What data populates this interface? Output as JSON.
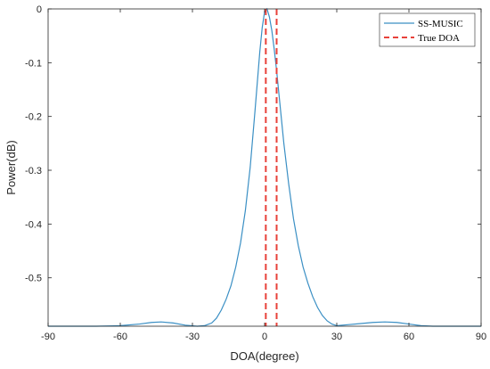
{
  "chart_data": {
    "type": "line",
    "title": "",
    "xlabel": "DOA(degree)",
    "ylabel": "Power(dB)",
    "xlim": [
      -90,
      90
    ],
    "ylim": [
      -0.59,
      0
    ],
    "xticks": [
      -90,
      -60,
      -30,
      0,
      30,
      60,
      90
    ],
    "yticks": [
      0,
      -0.1,
      -0.2,
      -0.3,
      -0.4,
      -0.5
    ],
    "ytick_labels": [
      "0",
      "-0.1",
      "-0.2",
      "-0.3",
      "-0.4",
      "-0.5"
    ],
    "grid": false,
    "legend": {
      "placement": "top-right"
    },
    "colors": {
      "music": "#3a8fc4",
      "true_doa": "#e8413a",
      "axis": "#262626"
    },
    "series": [
      {
        "name": "SS-MUSIC",
        "style": "solid",
        "x": [
          -90,
          -70,
          -60,
          -52,
          -47,
          -43,
          -38,
          -33,
          -28,
          -25,
          -22,
          -20,
          -18,
          -16,
          -14,
          -12,
          -10,
          -8,
          -6,
          -4,
          -2,
          -1,
          0,
          1,
          2,
          3,
          4,
          5,
          6,
          7,
          8,
          10,
          12,
          14,
          16,
          18,
          20,
          22,
          24,
          26,
          28,
          30,
          35,
          40,
          45,
          50,
          55,
          60,
          65,
          70,
          80,
          90
        ],
        "y": [
          -0.59,
          -0.59,
          -0.589,
          -0.586,
          -0.583,
          -0.582,
          -0.584,
          -0.588,
          -0.59,
          -0.589,
          -0.584,
          -0.575,
          -0.56,
          -0.54,
          -0.515,
          -0.48,
          -0.435,
          -0.375,
          -0.295,
          -0.19,
          -0.08,
          -0.035,
          -0.005,
          0,
          -0.015,
          -0.04,
          -0.075,
          -0.115,
          -0.16,
          -0.205,
          -0.25,
          -0.325,
          -0.39,
          -0.44,
          -0.48,
          -0.51,
          -0.535,
          -0.555,
          -0.57,
          -0.58,
          -0.586,
          -0.589,
          -0.587,
          -0.585,
          -0.583,
          -0.582,
          -0.583,
          -0.586,
          -0.589,
          -0.59,
          -0.59,
          -0.59
        ]
      },
      {
        "name": "True DOA",
        "style": "dashed",
        "x": [
          0.5,
          5
        ]
      }
    ]
  }
}
